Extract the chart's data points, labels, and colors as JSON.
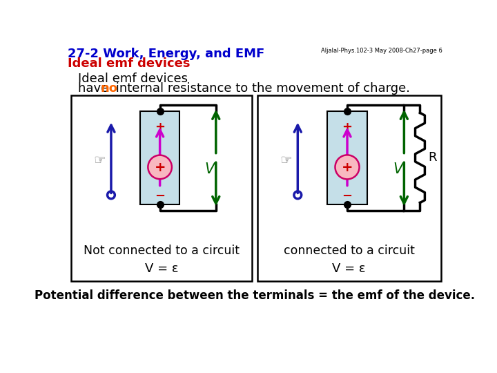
{
  "title_line1": "27-2 Work, Energy, and EMF",
  "title_line2": "Ideal emf devices",
  "title_color1": "#0000cc",
  "title_color2": "#cc0000",
  "header_text": "Aljalal-Phys.102-3 May 2008-Ch27-page 6",
  "desc_line1": "Ideal emf devices",
  "desc_line2_pre": "have ",
  "desc_line2_no": "no",
  "desc_line2_post": " internal resistance to the movement of charge.",
  "desc_color_no": "#ff6600",
  "box1_label": "Not connected to a circuit",
  "box2_label": "connected to a circuit",
  "bottom_text": "Potential difference between the terminals = the emf of the device.",
  "bg_color": "#ffffff",
  "battery_fill": "#c5dfe8",
  "green_color": "#006400",
  "blue_color": "#1a1aaa",
  "magenta_color": "#cc00cc",
  "red_color": "#cc0000"
}
